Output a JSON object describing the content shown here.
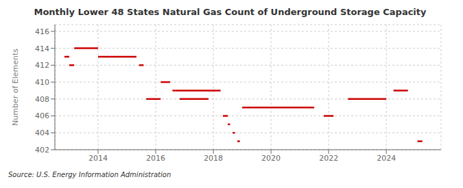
{
  "chart_data": {
    "type": "line",
    "title": "Monthly Lower 48 States Natural Gas Count of Underground Storage Capacity",
    "ylabel": "Number of Elements",
    "annotations": [
      "Source: U.S. Energy Information Administration"
    ],
    "xlim": [
      2012.5,
      2025.9
    ],
    "xticks": [
      2014,
      2016,
      2018,
      2020,
      2022,
      2024
    ],
    "ylim": [
      402,
      416.8
    ],
    "yticks": [
      402,
      404,
      406,
      408,
      410,
      412,
      414,
      416
    ],
    "grid": true,
    "series": [
      {
        "x": [
          2012.83,
          2013.0
        ],
        "values": [
          413,
          413
        ],
        "color": "#cc0000"
      },
      {
        "x": [
          2013.0,
          2013.17
        ],
        "values": [
          412,
          412
        ],
        "color": "#cc0000"
      },
      {
        "x": [
          2013.17,
          2014.0
        ],
        "values": [
          414,
          414
        ],
        "color": "#cc0000"
      },
      {
        "x": [
          2014.0,
          2015.33
        ],
        "values": [
          413,
          413
        ],
        "color": "#cc0000"
      },
      {
        "x": [
          2015.42,
          2015.58
        ],
        "values": [
          412,
          412
        ],
        "color": "#cc0000"
      },
      {
        "x": [
          2015.67,
          2016.17
        ],
        "values": [
          408,
          408
        ],
        "color": "#cc0000"
      },
      {
        "x": [
          2016.17,
          2016.5
        ],
        "values": [
          410,
          410
        ],
        "color": "#cc0000"
      },
      {
        "x": [
          2016.58,
          2016.67
        ],
        "values": [
          409,
          409
        ],
        "color": "#cc0000"
      },
      {
        "x": [
          2016.67,
          2018.25
        ],
        "values": [
          409,
          409
        ],
        "color": "#cc0000"
      },
      {
        "x": [
          2016.83,
          2017.83
        ],
        "values": [
          408,
          408
        ],
        "color": "#cc0000"
      },
      {
        "x": [
          2018.33,
          2018.5
        ],
        "values": [
          406,
          406
        ],
        "color": "#cc0000"
      },
      {
        "x": [
          2018.5,
          2018.58
        ],
        "values": [
          405,
          405
        ],
        "color": "#cc0000"
      },
      {
        "x": [
          2018.67,
          2018.75
        ],
        "values": [
          404,
          404
        ],
        "color": "#cc0000"
      },
      {
        "x": [
          2018.83,
          2018.92
        ],
        "values": [
          403,
          403
        ],
        "color": "#cc0000"
      },
      {
        "x": [
          2019.0,
          2021.5
        ],
        "values": [
          407,
          407
        ],
        "color": "#cc0000"
      },
      {
        "x": [
          2021.83,
          2022.17
        ],
        "values": [
          406,
          406
        ],
        "color": "#cc0000"
      },
      {
        "x": [
          2022.67,
          2024.0
        ],
        "values": [
          408,
          408
        ],
        "color": "#cc0000"
      },
      {
        "x": [
          2024.25,
          2024.75
        ],
        "values": [
          409,
          409
        ],
        "color": "#cc0000"
      },
      {
        "x": [
          2025.08,
          2025.25
        ],
        "values": [
          403,
          403
        ],
        "color": "#cc0000"
      }
    ]
  }
}
